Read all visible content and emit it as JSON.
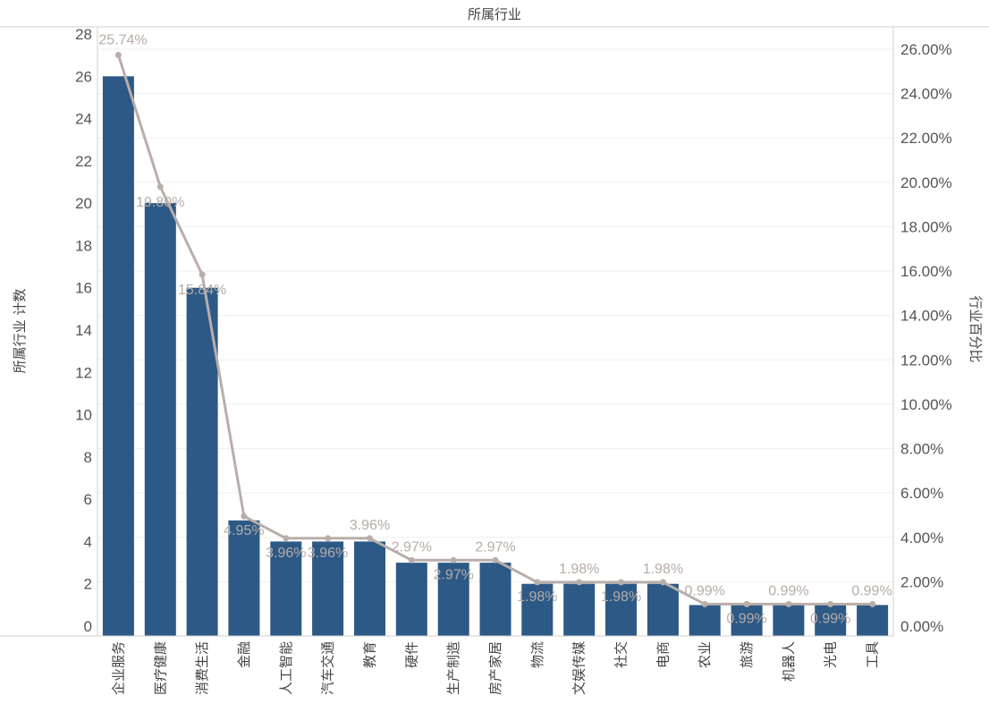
{
  "chart_data": {
    "type": "bar",
    "title": "所属行业",
    "ylabel": "所属行业 计数",
    "y2label": "行业百分比",
    "ylim": [
      0,
      28
    ],
    "y2lim": [
      0,
      26
    ],
    "yticks": [
      "0",
      "2",
      "4",
      "6",
      "8",
      "10",
      "12",
      "14",
      "16",
      "18",
      "20",
      "22",
      "24",
      "26",
      "28"
    ],
    "y2ticks": [
      "0.00%",
      "2.00%",
      "4.00%",
      "6.00%",
      "8.00%",
      "10.00%",
      "12.00%",
      "14.00%",
      "16.00%",
      "18.00%",
      "20.00%",
      "22.00%",
      "24.00%",
      "26.00%"
    ],
    "grid": true,
    "categories": [
      "企业服务",
      "医疗健康",
      "消费生活",
      "金融",
      "人工智能",
      "汽车交通",
      "教育",
      "硬件",
      "生产制造",
      "房产家居",
      "物流",
      "文娱传媒",
      "社交",
      "电商",
      "农业",
      "旅游",
      "机器人",
      "光电",
      "工具"
    ],
    "series": [
      {
        "type": "bar",
        "axis": "left",
        "color": "#2d5986",
        "values": [
          26,
          20,
          16,
          5,
          4,
          4,
          4,
          3,
          3,
          3,
          2,
          2,
          2,
          2,
          1,
          1,
          1,
          1,
          1
        ]
      },
      {
        "type": "line",
        "axis": "right",
        "color": "#b9aeaa",
        "values": [
          25.74,
          19.8,
          15.84,
          4.95,
          3.96,
          3.96,
          3.96,
          2.97,
          2.97,
          2.97,
          1.98,
          1.98,
          1.98,
          1.98,
          0.99,
          0.99,
          0.99,
          0.99,
          0.99
        ],
        "labels": [
          "25.74%",
          "19.80%",
          "15.84%",
          "4.95%",
          "3.96%",
          "3.96%",
          "3.96%",
          "2.97%",
          "2.97%",
          "2.97%",
          "1.98%",
          "1.98%",
          "1.98%",
          "1.98%",
          "0.99%",
          "0.99%",
          "0.99%",
          "0.99%",
          "0.99%"
        ]
      }
    ]
  }
}
